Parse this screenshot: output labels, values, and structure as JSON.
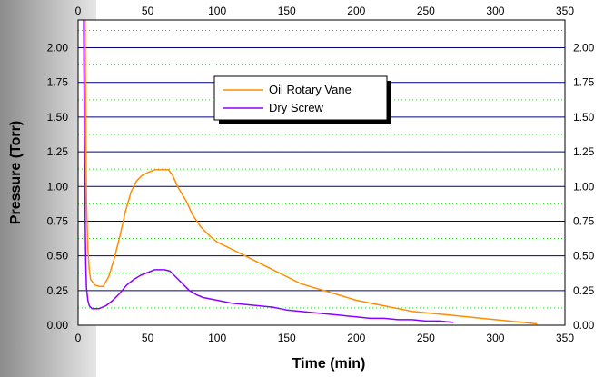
{
  "chart_data": {
    "type": "line",
    "xlabel": "Time (min)",
    "ylabel": "Pressure (Torr)",
    "xlim": [
      0,
      350
    ],
    "ylim": [
      0,
      2.2
    ],
    "x_ticks": [
      "0",
      "50",
      "100",
      "150",
      "200",
      "250",
      "300",
      "350"
    ],
    "y_ticks": [
      "0.00",
      "0.25",
      "0.50",
      "0.75",
      "1.00",
      "1.25",
      "1.50",
      "1.75",
      "2.00"
    ],
    "grid": {
      "major": "solid navy lines at each labeled y tick",
      "minor": "dotted green lines between major lines"
    },
    "legend_position": "top-center",
    "series": [
      {
        "name": "Oil Rotary Vane",
        "color": "#FF8C00",
        "points": [
          [
            5,
            2.2
          ],
          [
            5.5,
            1.5
          ],
          [
            6,
            0.9
          ],
          [
            7,
            0.55
          ],
          [
            8,
            0.4
          ],
          [
            9,
            0.33
          ],
          [
            12,
            0.29
          ],
          [
            15,
            0.28
          ],
          [
            18,
            0.28
          ],
          [
            22,
            0.35
          ],
          [
            26,
            0.48
          ],
          [
            30,
            0.64
          ],
          [
            34,
            0.82
          ],
          [
            38,
            0.96
          ],
          [
            42,
            1.04
          ],
          [
            46,
            1.08
          ],
          [
            50,
            1.1
          ],
          [
            55,
            1.12
          ],
          [
            65,
            1.12
          ],
          [
            68,
            1.08
          ],
          [
            72,
            0.99
          ],
          [
            78,
            0.89
          ],
          [
            82,
            0.8
          ],
          [
            88,
            0.71
          ],
          [
            95,
            0.64
          ],
          [
            100,
            0.6
          ],
          [
            110,
            0.55
          ],
          [
            120,
            0.5
          ],
          [
            130,
            0.45
          ],
          [
            140,
            0.4
          ],
          [
            150,
            0.35
          ],
          [
            160,
            0.3
          ],
          [
            170,
            0.27
          ],
          [
            180,
            0.24
          ],
          [
            190,
            0.21
          ],
          [
            200,
            0.18
          ],
          [
            210,
            0.16
          ],
          [
            220,
            0.14
          ],
          [
            230,
            0.12
          ],
          [
            240,
            0.1
          ],
          [
            250,
            0.09
          ],
          [
            260,
            0.08
          ],
          [
            270,
            0.07
          ],
          [
            280,
            0.06
          ],
          [
            290,
            0.05
          ],
          [
            300,
            0.04
          ],
          [
            310,
            0.03
          ],
          [
            320,
            0.02
          ],
          [
            330,
            0.01
          ]
        ]
      },
      {
        "name": "Dry Screw",
        "color": "#8B00FF",
        "points": [
          [
            4,
            2.2
          ],
          [
            4.5,
            1.4
          ],
          [
            5,
            0.8
          ],
          [
            5.5,
            0.45
          ],
          [
            6,
            0.27
          ],
          [
            7,
            0.18
          ],
          [
            8,
            0.14
          ],
          [
            10,
            0.12
          ],
          [
            15,
            0.12
          ],
          [
            20,
            0.14
          ],
          [
            25,
            0.18
          ],
          [
            30,
            0.23
          ],
          [
            35,
            0.29
          ],
          [
            40,
            0.33
          ],
          [
            45,
            0.36
          ],
          [
            50,
            0.38
          ],
          [
            55,
            0.4
          ],
          [
            62,
            0.4
          ],
          [
            66,
            0.39
          ],
          [
            70,
            0.35
          ],
          [
            75,
            0.3
          ],
          [
            80,
            0.25
          ],
          [
            85,
            0.22
          ],
          [
            90,
            0.2
          ],
          [
            100,
            0.18
          ],
          [
            110,
            0.16
          ],
          [
            120,
            0.15
          ],
          [
            130,
            0.14
          ],
          [
            140,
            0.13
          ],
          [
            150,
            0.11
          ],
          [
            160,
            0.1
          ],
          [
            170,
            0.09
          ],
          [
            180,
            0.08
          ],
          [
            190,
            0.07
          ],
          [
            200,
            0.06
          ],
          [
            210,
            0.05
          ],
          [
            220,
            0.05
          ],
          [
            230,
            0.04
          ],
          [
            240,
            0.04
          ],
          [
            250,
            0.03
          ],
          [
            260,
            0.03
          ],
          [
            270,
            0.02
          ]
        ]
      }
    ]
  }
}
